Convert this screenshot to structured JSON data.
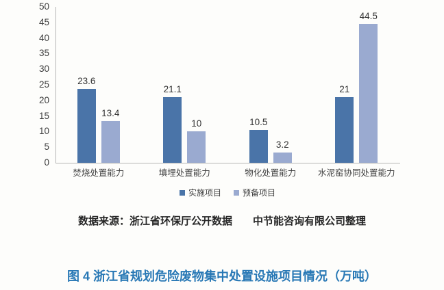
{
  "chart_data": {
    "type": "bar",
    "title": "",
    "xlabel": "",
    "ylabel": "",
    "categories": [
      "焚烧处置能力",
      "填埋处置能力",
      "物化处置能力",
      "水泥窑协同处置能力"
    ],
    "series": [
      {
        "name": "实施项目",
        "color": "#4a74a8",
        "values": [
          23.6,
          21.1,
          10.5,
          21
        ]
      },
      {
        "name": "预备项目",
        "color": "#9aaad0",
        "values": [
          13.4,
          10,
          3.2,
          44.5
        ]
      }
    ],
    "ylim": [
      0,
      50
    ],
    "yticks": [
      0,
      5,
      10,
      15,
      20,
      25,
      30,
      35,
      40,
      45,
      50
    ],
    "grid": false,
    "legend_position": "bottom",
    "data_labels": true
  },
  "source_note": "数据来源：浙江省环保厅公开数据　　中节能咨询有限公司整理",
  "caption": "图 4  浙江省规划危险废物集中处置设施项目情况（万吨）",
  "colors": {
    "series_implemented": "#4a74a8",
    "series_reserve": "#9aaad0",
    "caption_blue": "#2878b5",
    "axis_line": "#b3b3b3",
    "background": "#fdfdfb"
  }
}
